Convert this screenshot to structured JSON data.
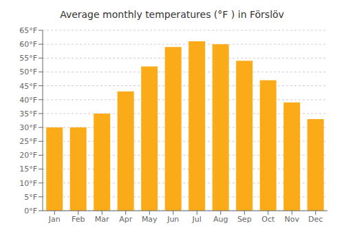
{
  "chart_data": {
    "type": "bar",
    "title": "Average monthly temperatures (°F ) in Förslöv",
    "categories": [
      "Jan",
      "Feb",
      "Mar",
      "Apr",
      "May",
      "Jun",
      "Jul",
      "Aug",
      "Sep",
      "Oct",
      "Nov",
      "Dec"
    ],
    "values": [
      30,
      30,
      35,
      43,
      52,
      59,
      61,
      60,
      54,
      47,
      39,
      33
    ],
    "color": "#FBAB18",
    "ylim": [
      0,
      65
    ],
    "yticks": [
      {
        "value": 0,
        "label": "0°F"
      },
      {
        "value": 5,
        "label": "5°F"
      },
      {
        "value": 10,
        "label": "10°F"
      },
      {
        "value": 15,
        "label": "15°F"
      },
      {
        "value": 20,
        "label": "20°F"
      },
      {
        "value": 25,
        "label": "25°F"
      },
      {
        "value": 30,
        "label": "30°F"
      },
      {
        "value": 35,
        "label": "35°F"
      },
      {
        "value": 40,
        "label": "40°F"
      },
      {
        "value": 45,
        "label": "45°F"
      },
      {
        "value": 50,
        "label": "50°F"
      },
      {
        "value": 55,
        "label": "55°F"
      },
      {
        "value": 60,
        "label": "60°F"
      },
      {
        "value": 65,
        "label": "65°F"
      }
    ],
    "grid": true
  }
}
